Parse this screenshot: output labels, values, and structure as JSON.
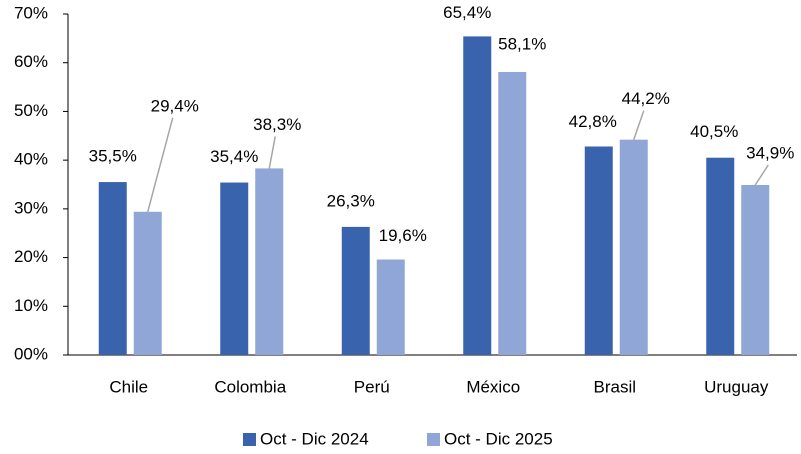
{
  "chart_data": {
    "type": "bar",
    "categories": [
      "Chile",
      "Colombia",
      "Perú",
      "México",
      "Brasil",
      "Uruguay"
    ],
    "series": [
      {
        "name": "Oct - Dic 2024",
        "color": "#3a63ae",
        "values": [
          35.5,
          35.4,
          26.3,
          65.4,
          42.8,
          40.5
        ],
        "value_labels": [
          "35,5%",
          "35,4%",
          "26,3%",
          "65,4%",
          "42,8%",
          "40,5%"
        ]
      },
      {
        "name": "Oct - Dic 2025",
        "color": "#8fa6d7",
        "values": [
          29.4,
          38.3,
          19.6,
          58.1,
          44.2,
          34.9
        ],
        "value_labels": [
          "29,4%",
          "38,3%",
          "19,6%",
          "58,1%",
          "44,2%",
          "34,9%"
        ]
      }
    ],
    "ylim": [
      0,
      70
    ],
    "yticks": [
      {
        "value": 0,
        "label": "00%"
      },
      {
        "value": 10,
        "label": "10%"
      },
      {
        "value": 20,
        "label": "20%"
      },
      {
        "value": 30,
        "label": "30%"
      },
      {
        "value": 40,
        "label": "40%"
      },
      {
        "value": 50,
        "label": "50%"
      },
      {
        "value": 60,
        "label": "60%"
      },
      {
        "value": 70,
        "label": "70%"
      }
    ],
    "legend": "bottom"
  }
}
